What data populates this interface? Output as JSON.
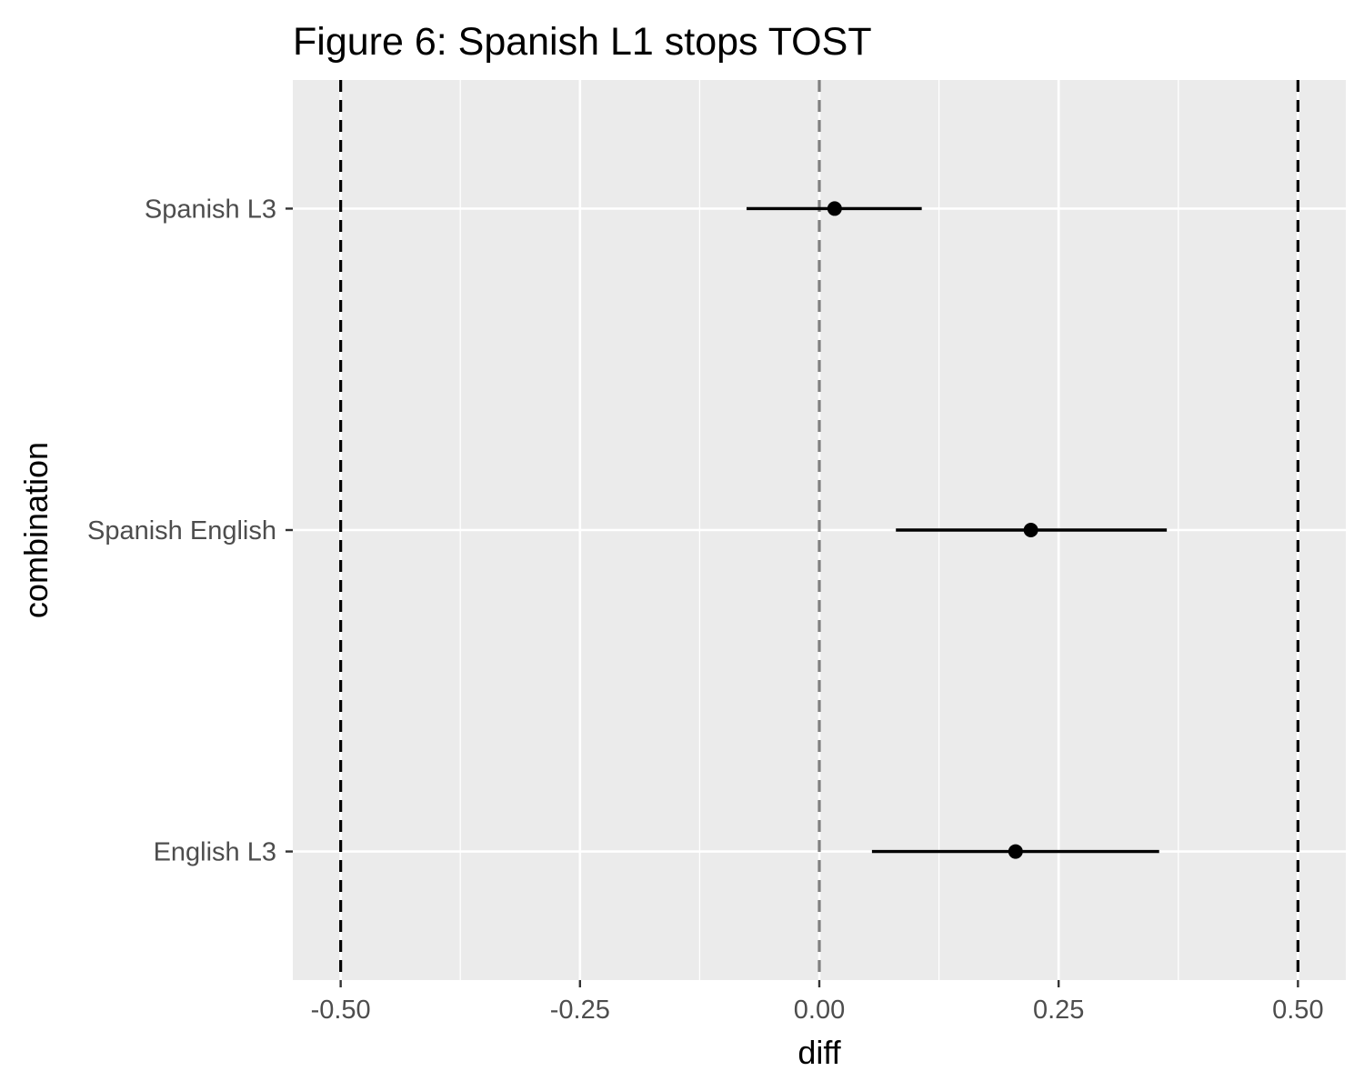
{
  "chart_data": {
    "type": "scatter",
    "title": "Figure 6: Spanish L1 stops TOST",
    "xlabel": "diff",
    "ylabel": "combination",
    "xlim": [
      -0.55,
      0.55
    ],
    "x_ticks": [
      {
        "value": -0.5,
        "label": "-0.50"
      },
      {
        "value": -0.25,
        "label": "-0.25"
      },
      {
        "value": 0,
        "label": "0.00"
      },
      {
        "value": 0.25,
        "label": "0.25"
      },
      {
        "value": 0.5,
        "label": "0.50"
      }
    ],
    "categories": [
      "English L3",
      "Spanish English",
      "Spanish L3"
    ],
    "points": [
      {
        "category": "Spanish L3",
        "estimate": 0.016,
        "lower": -0.076,
        "upper": 0.107
      },
      {
        "category": "Spanish English",
        "estimate": 0.221,
        "lower": 0.08,
        "upper": 0.363
      },
      {
        "category": "English L3",
        "estimate": 0.205,
        "lower": 0.055,
        "upper": 0.355
      }
    ],
    "reference_lines": [
      {
        "x": -0.5,
        "style": "dashed",
        "color": "#000000"
      },
      {
        "x": 0,
        "style": "dashed",
        "color": "#7f7f7f"
      },
      {
        "x": 0.5,
        "style": "dashed",
        "color": "#000000"
      }
    ],
    "grid": true,
    "panel_background": "#ebebeb",
    "grid_color": "#ffffff",
    "point_color": "#000000"
  }
}
